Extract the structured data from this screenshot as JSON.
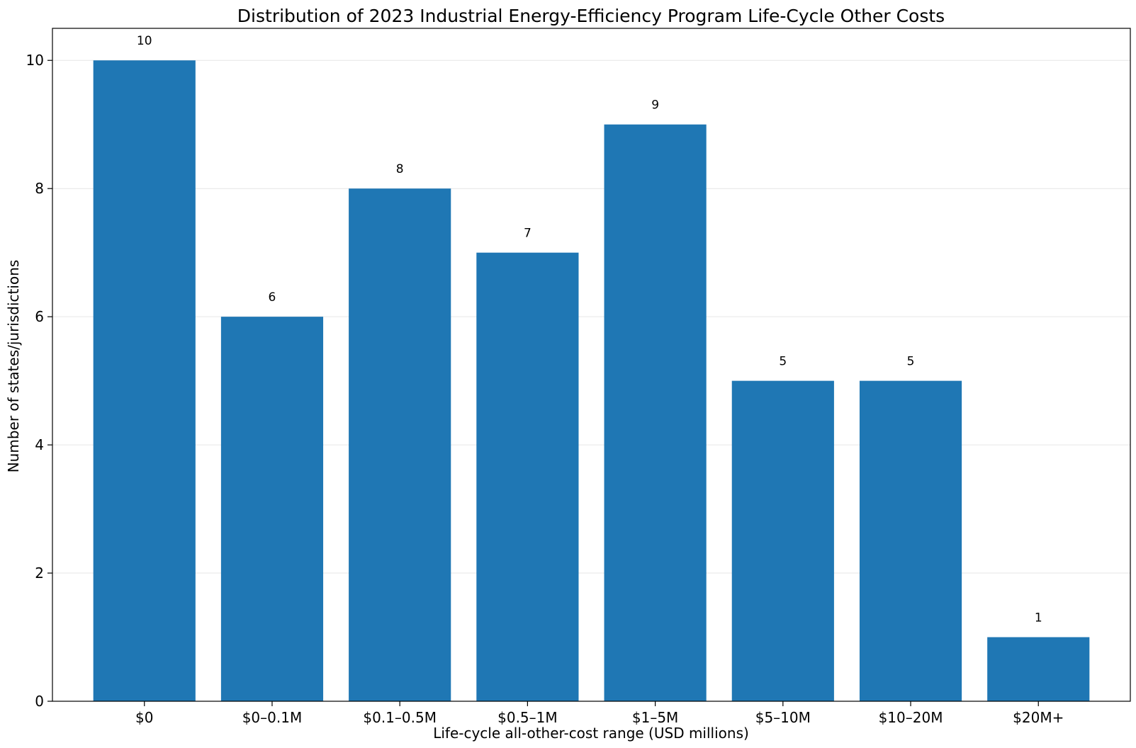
{
  "chart_data": {
    "type": "bar",
    "title": "Distribution of 2023 Industrial Energy-Efficiency Program Life-Cycle Other Costs",
    "xlabel": "Life-cycle all-other-cost range (USD millions)",
    "ylabel": "Number of states/jurisdictions",
    "categories": [
      "$0",
      "$0–0.1M",
      "$0.1–0.5M",
      "$0.5–1M",
      "$1–5M",
      "$5–10M",
      "$10–20M",
      "$20M+"
    ],
    "values": [
      10,
      6,
      8,
      7,
      9,
      5,
      5,
      1
    ],
    "data_labels": [
      "10",
      "6",
      "8",
      "7",
      "9",
      "5",
      "5",
      "1"
    ],
    "ylim": [
      0,
      10.5
    ],
    "yticks": [
      0,
      2,
      4,
      6,
      8,
      10
    ],
    "ytick_labels": [
      "0",
      "2",
      "4",
      "6",
      "8",
      "10"
    ],
    "grid": "y",
    "legend": "none",
    "bar_color": "#1f77b4"
  }
}
